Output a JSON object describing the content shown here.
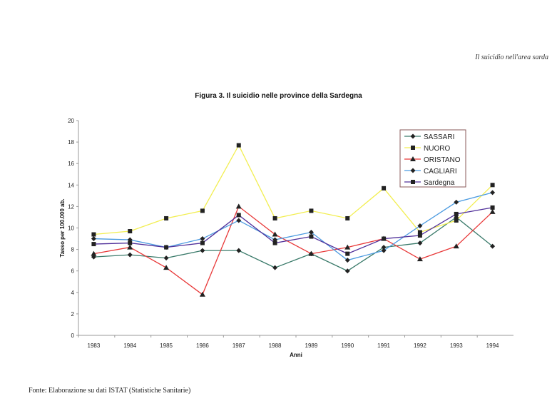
{
  "header": {
    "running_title": "Il suicidio nell'area sarda"
  },
  "source_note": "Fonte: Elaborazione su dati ISTAT (Statistiche Sanitarie)",
  "chart_data": {
    "type": "line",
    "title": "Figura   3. Il suicidio nelle province della Sardegna",
    "xlabel": "Anni",
    "ylabel": "Tasso per 100.000 ab.",
    "ylim": [
      0,
      20
    ],
    "yticks": [
      "0",
      "2",
      "4",
      "6",
      "8",
      "10",
      "12",
      "14",
      "16",
      "18",
      "20"
    ],
    "categories": [
      "1983",
      "1984",
      "1985",
      "1986",
      "1987",
      "1988",
      "1989",
      "1990",
      "1991",
      "1992",
      "1993",
      "1994"
    ],
    "legend_position": "top-right",
    "grid": false,
    "series": [
      {
        "name": "SASSARI",
        "color": "#3a7a6a",
        "marker": "diamond",
        "values": [
          7.3,
          7.5,
          7.2,
          7.9,
          7.9,
          6.3,
          7.6,
          6.0,
          8.2,
          8.6,
          11.0,
          8.3
        ]
      },
      {
        "name": "NUORO",
        "color": "#f2ee50",
        "marker": "square",
        "values": [
          9.4,
          9.7,
          10.9,
          11.6,
          17.7,
          10.9,
          11.6,
          10.9,
          13.7,
          9.6,
          10.7,
          14.0
        ]
      },
      {
        "name": "ORISTANO",
        "color": "#e83838",
        "marker": "triangle",
        "values": [
          7.6,
          8.2,
          6.3,
          3.8,
          12.0,
          9.4,
          7.6,
          8.2,
          9.0,
          7.1,
          8.3,
          11.5
        ]
      },
      {
        "name": "CAGLIARI",
        "color": "#4a9ae0",
        "marker": "diamond",
        "values": [
          9.0,
          8.9,
          8.2,
          9.0,
          10.7,
          8.9,
          9.6,
          7.0,
          7.9,
          10.2,
          12.4,
          13.3
        ]
      },
      {
        "name": "Sardegna",
        "color": "#50309a",
        "marker": "square",
        "values": [
          8.5,
          8.6,
          8.2,
          8.6,
          11.2,
          8.6,
          9.2,
          7.6,
          9.0,
          9.3,
          11.3,
          11.9
        ]
      }
    ]
  }
}
